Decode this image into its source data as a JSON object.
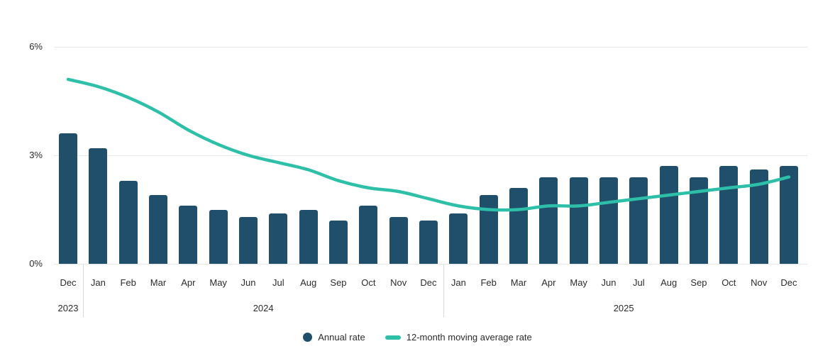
{
  "chart_data": {
    "type": "bar",
    "subtype": "bar-with-line-overlay",
    "title": "",
    "xlabel": "",
    "ylabel": "",
    "ylim": [
      0,
      6
    ],
    "grid": true,
    "legend_position": "bottom",
    "yticks": [
      {
        "label": "0%",
        "value": 0
      },
      {
        "label": "3%",
        "value": 3
      },
      {
        "label": "6%",
        "value": 6
      }
    ],
    "categories": [
      "Dec",
      "Jan",
      "Feb",
      "Mar",
      "Apr",
      "May",
      "Jun",
      "Jul",
      "Aug",
      "Sep",
      "Oct",
      "Nov",
      "Dec",
      "Jan",
      "Feb",
      "Mar",
      "Apr",
      "May",
      "Jun",
      "Jul",
      "Aug",
      "Sep",
      "Oct",
      "Nov",
      "Dec"
    ],
    "periods": [
      {
        "label": "2023",
        "start_index": 0,
        "end_index": 0
      },
      {
        "label": "2024",
        "start_index": 1,
        "end_index": 12
      },
      {
        "label": "2025",
        "start_index": 13,
        "end_index": 24
      }
    ],
    "series": [
      {
        "name": "Annual rate",
        "type": "bar",
        "color": "#1f4f6b",
        "values": [
          3.6,
          3.2,
          2.3,
          1.9,
          1.6,
          1.5,
          1.3,
          1.4,
          1.5,
          1.2,
          1.6,
          1.3,
          1.2,
          1.4,
          1.9,
          2.1,
          2.4,
          2.4,
          2.4,
          2.4,
          2.7,
          2.4,
          2.7,
          2.6,
          2.7
        ]
      },
      {
        "name": "12-month moving average rate",
        "type": "line",
        "color": "#2ebfa8",
        "values": [
          5.1,
          4.9,
          4.6,
          4.2,
          3.7,
          3.3,
          3.0,
          2.8,
          2.6,
          2.3,
          2.1,
          2.0,
          1.8,
          1.6,
          1.5,
          1.5,
          1.6,
          1.6,
          1.7,
          1.8,
          1.9,
          2.0,
          2.1,
          2.2,
          2.4
        ]
      }
    ]
  }
}
